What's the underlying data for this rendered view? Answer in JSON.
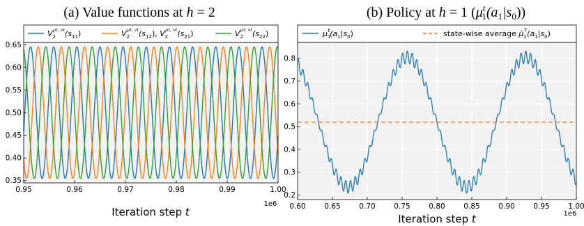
{
  "colors": {
    "blue": "#1f77b4",
    "orange": "#ff7f0e",
    "green": "#2ca02c",
    "plot_bg": "#f2f2f2",
    "grid": "#ffffff"
  },
  "chart_data": [
    {
      "id": "a",
      "type": "line",
      "title": "(a) Value functions at h = 2",
      "xlabel": "Iteration step t",
      "x_offset_label": "1e6",
      "xlim": [
        0.95,
        1.0
      ],
      "ylim": [
        0.345,
        0.655
      ],
      "xticks": [
        0.95,
        0.96,
        0.97,
        0.98,
        0.99,
        1.0
      ],
      "xtick_labels": [
        "0.95",
        "0.96",
        "0.97",
        "0.98",
        "0.99",
        "1.00"
      ],
      "yticks": [
        0.35,
        0.4,
        0.45,
        0.5,
        0.55,
        0.6,
        0.65
      ],
      "ytick_labels": [
        "0.35",
        "0.40",
        "0.45",
        "0.50",
        "0.55",
        "0.60",
        "0.65"
      ],
      "grid": true,
      "legend_position": "top",
      "model": {
        "amplitude": 0.145,
        "mean": 0.5,
        "period": 0.00455
      },
      "series": [
        {
          "name": "V2^{μt,νt}(s11)",
          "color": "blue",
          "phase_peak_at": 0.95135
        },
        {
          "name": "V2^{μt,νt}(s12), V2^{μt,νt}(s21)",
          "color": "orange",
          "phase_peak_at": 0.95285
        },
        {
          "name": "V2^{μt,νt}(s22)",
          "color": "green",
          "phase_peak_at": 0.95435
        }
      ]
    },
    {
      "id": "b",
      "type": "line",
      "title": "(b) Policy at h = 1 (μ1^t(a1|s0))",
      "xlabel": "Iteration step t",
      "x_offset_label": "1e6",
      "xlim": [
        0.6,
        1.0
      ],
      "ylim": [
        0.18,
        0.87
      ],
      "xticks": [
        0.6,
        0.65,
        0.7,
        0.75,
        0.8,
        0.85,
        0.9,
        0.95,
        1.0
      ],
      "xtick_labels": [
        "0.60",
        "0.65",
        "0.70",
        "0.75",
        "0.80",
        "0.85",
        "0.90",
        "0.95",
        "1.00"
      ],
      "yticks": [
        0.2,
        0.3,
        0.4,
        0.5,
        0.6,
        0.7,
        0.8
      ],
      "ytick_labels": [
        "0.2",
        "0.3",
        "0.4",
        "0.5",
        "0.6",
        "0.7",
        "0.8"
      ],
      "grid": true,
      "legend_position": "top",
      "model": {
        "mean": 0.52,
        "main_amplitude": 0.285,
        "main_period": 0.17,
        "main_peak_at": 0.7575,
        "ripple_amplitude": 0.027,
        "ripple_period": 0.0068
      },
      "average_value": 0.52,
      "series": [
        {
          "name": "μ1^t(a1|s0)",
          "color": "blue"
        },
        {
          "name": "state-wise average μ̄1^T(a1|s0)",
          "color": "orange",
          "style": "dashed"
        }
      ]
    }
  ],
  "titles": {
    "a": {
      "prefix": "(a) Value functions at ",
      "var": "h",
      "rest": " = 2"
    },
    "b": {
      "prefix": "(b) Policy at ",
      "var": "h",
      "rest": " = 1 (",
      "mu": "μ",
      "sup": "t",
      "sub": "1",
      "arg": "(a",
      "argsub": "1",
      "bar": "|s",
      "barsub": "0",
      "close": "))"
    }
  },
  "xlabel": {
    "prefix": "Iteration step ",
    "var": "t"
  },
  "legends": {
    "a": [
      {
        "V": "V",
        "sub": "2",
        "sup": "μt, νt",
        "arg": "(s",
        "argsub": "11",
        "close": ")"
      },
      {
        "V": "V",
        "sub": "2",
        "sup": "μt, νt",
        "arg": "(s",
        "argsub": "12",
        "mid": "), ",
        "V2": "V",
        "sub2": "2",
        "sup2": "μt, νt",
        "arg2": "(s",
        "argsub2": "21",
        "close": ")"
      },
      {
        "V": "V",
        "sub": "2",
        "sup": "μt, νt",
        "arg": "(s",
        "argsub": "22",
        "close": ")"
      }
    ],
    "b": [
      {
        "mu": "μ",
        "sub": "1",
        "sup": "t",
        "arg": "(a",
        "argsub": "1",
        "bar": "|s",
        "barsub": "0",
        "close": ")"
      },
      {
        "prefix": "state-wise average ",
        "mu": "μ̄",
        "sub": "1",
        "sup": "T",
        "arg": "(a",
        "argsub": "1",
        "bar": "|s",
        "barsub": "0",
        "close": ")"
      }
    ]
  }
}
